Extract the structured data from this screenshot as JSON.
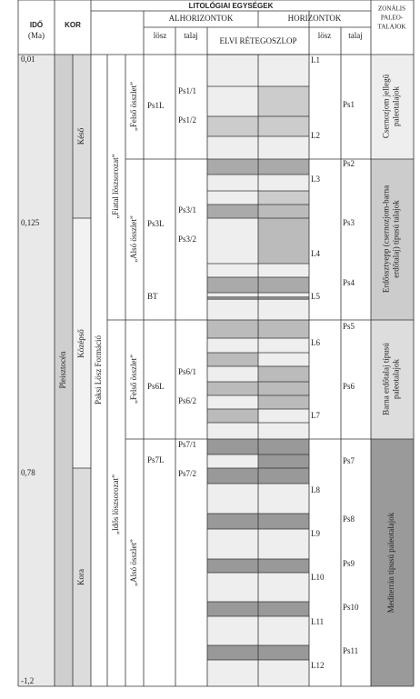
{
  "header": {
    "title": "LITOLÓGIAI EGYSÉGEK",
    "age": "IDŐ",
    "age_unit": "(Ma)",
    "kor": "KOR",
    "alhorizontok": "ALHORIZONTOK",
    "horizontok": "HORIZONTOK",
    "column": "ELVI RÉTEGOSZLOP",
    "sub_loess": "lösz",
    "sub_soil": "talaj",
    "hor_loess": "lösz",
    "hor_soil": "talaj",
    "zonal": [
      "ZONÁLIS",
      "PALEO-",
      "TALAJOK"
    ]
  },
  "ages": [
    "0,01",
    "0,125",
    "0,78",
    "-1,2"
  ],
  "epoch": "Pleisztocén",
  "stages": [
    "Késő",
    "Középső",
    "Kora"
  ],
  "formation": "Paksi Lösz Formáció",
  "sequences": [
    "„Fiatal löszsorozat”",
    "„Idős löszsorozat”"
  ],
  "units": [
    "„Felső összlet”",
    "„Alsó összlet”",
    "„Felső összlet”",
    "„Alsó összlet”"
  ],
  "subhorizon_loess": [
    "Ps1L",
    "Ps3L",
    "BT",
    "Ps6L",
    "Ps7L"
  ],
  "subhorizon_soil": [
    "Ps1/1",
    "Ps1/2",
    "Ps3/1",
    "Ps3/2",
    "Ps6/1",
    "Ps6/2",
    "Ps7/1",
    "Ps7/2"
  ],
  "horizon_loess": [
    "L1",
    "L2",
    "L3",
    "L4",
    "L5",
    "L6",
    "L7",
    "L8",
    "L9",
    "L10",
    "L11",
    "L12"
  ],
  "horizon_soil": [
    "Ps1",
    "Ps2",
    "Ps3",
    "Ps4",
    "Ps5",
    "Ps6",
    "Ps7",
    "Ps8",
    "Ps9",
    "Ps10",
    "Ps11"
  ],
  "zonal": [
    [
      "Csernozjom jellegű",
      "paleotalajok"
    ],
    [
      "Erdőssztyepp (csernozjom-barna",
      "erdőtalaj) típusú talajok"
    ],
    [
      "Barna erdőtalaj típusú",
      "paleotalajok"
    ],
    [
      "Mediterrán típusú paleotalajok"
    ]
  ]
}
